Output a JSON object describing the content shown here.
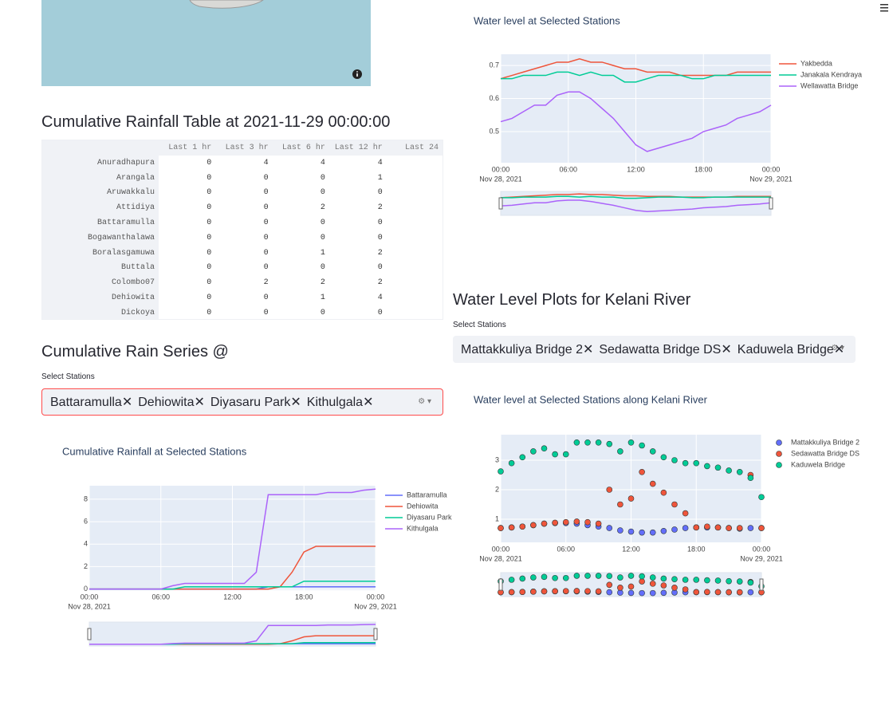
{
  "rainfall_table": {
    "title": "Cumulative Rainfall Table at 2021-11-29 00:00:00",
    "columns": [
      "Last 1 hr",
      "Last 3 hr",
      "Last 6 hr",
      "Last 12 hr",
      "Last 24"
    ],
    "rows": [
      [
        "Anuradhapura",
        0,
        4,
        4,
        4
      ],
      [
        "Arangala",
        0,
        0,
        0,
        1
      ],
      [
        "Aruwakkalu",
        0,
        0,
        0,
        0
      ],
      [
        "Attidiya",
        0,
        0,
        2,
        2
      ],
      [
        "Battaramulla",
        0,
        0,
        0,
        0
      ],
      [
        "Bogawanthalawa",
        0,
        0,
        0,
        0
      ],
      [
        "Boralasgamuwa",
        0,
        0,
        1,
        2
      ],
      [
        "Buttala",
        0,
        0,
        0,
        0
      ],
      [
        "Colombo07",
        0,
        2,
        2,
        2
      ],
      [
        "Dehiowita",
        0,
        0,
        1,
        4
      ],
      [
        "Dickoya",
        0,
        0,
        0,
        0
      ]
    ]
  },
  "rain_series": {
    "title": "Cumulative Rain Series @",
    "select_label": "Select Stations",
    "tags": [
      "Battaramulla",
      "Dehiowita",
      "Diyasaru Park",
      "Kithulgala"
    ]
  },
  "kelani": {
    "title": "Water Level Plots for Kelani River",
    "select_label": "Select Stations",
    "tags": [
      "Mattakkuliya Bridge 2",
      "Sedawatta Bridge DS",
      "Kaduwela Bridge"
    ]
  },
  "chart_data": [
    {
      "type": "line",
      "title": "Water level at Selected Stations",
      "x": [
        "2021-11-28 00:00",
        "2021-11-28 01:00",
        "2021-11-28 02:00",
        "2021-11-28 03:00",
        "2021-11-28 04:00",
        "2021-11-28 05:00",
        "2021-11-28 06:00",
        "2021-11-28 07:00",
        "2021-11-28 08:00",
        "2021-11-28 09:00",
        "2021-11-28 10:00",
        "2021-11-28 11:00",
        "2021-11-28 12:00",
        "2021-11-28 13:00",
        "2021-11-28 14:00",
        "2021-11-28 15:00",
        "2021-11-28 16:00",
        "2021-11-28 17:00",
        "2021-11-28 18:00",
        "2021-11-28 19:00",
        "2021-11-28 20:00",
        "2021-11-28 21:00",
        "2021-11-28 22:00",
        "2021-11-28 23:00",
        "2021-11-29 00:00"
      ],
      "series": [
        {
          "name": "Yakbedda",
          "color": "#ef553b",
          "values": [
            0.66,
            0.67,
            0.68,
            0.69,
            0.7,
            0.71,
            0.71,
            0.72,
            0.71,
            0.71,
            0.7,
            0.69,
            0.69,
            0.68,
            0.68,
            0.68,
            0.67,
            0.67,
            0.67,
            0.67,
            0.67,
            0.68,
            0.68,
            0.68,
            0.68
          ]
        },
        {
          "name": "Janakala Kendraya",
          "color": "#00cc96",
          "values": [
            0.66,
            0.66,
            0.67,
            0.67,
            0.67,
            0.68,
            0.68,
            0.67,
            0.68,
            0.67,
            0.67,
            0.65,
            0.65,
            0.66,
            0.67,
            0.67,
            0.67,
            0.66,
            0.66,
            0.67,
            0.67,
            0.67,
            0.67,
            0.67,
            0.67
          ]
        },
        {
          "name": "Wellawatta Bridge",
          "color": "#ab63fa",
          "values": [
            0.53,
            0.54,
            0.56,
            0.58,
            0.58,
            0.61,
            0.62,
            0.62,
            0.6,
            0.57,
            0.54,
            0.5,
            0.46,
            0.44,
            0.45,
            0.46,
            0.47,
            0.48,
            0.5,
            0.51,
            0.52,
            0.54,
            0.55,
            0.56,
            0.58
          ]
        }
      ],
      "xlim": [
        "2021-11-28 00:00",
        "2021-11-29 00:00"
      ],
      "xticks": [
        {
          "value": "2021-11-28 00:00",
          "label": "00:00",
          "date": "Nov 28, 2021"
        },
        {
          "value": "2021-11-28 06:00",
          "label": "06:00"
        },
        {
          "value": "2021-11-28 12:00",
          "label": "12:00"
        },
        {
          "value": "2021-11-28 18:00",
          "label": "18:00"
        },
        {
          "value": "2021-11-29 00:00",
          "label": "00:00",
          "date": "Nov 29, 2021"
        }
      ],
      "ylim": [
        0.406,
        0.734
      ],
      "yticks": [
        0.5,
        0.6,
        0.7
      ],
      "grid": true,
      "rangeslider": true
    },
    {
      "type": "line",
      "title": "Cumulative Rainfall at Selected Stations",
      "x": [
        "2021-11-28 00:00",
        "2021-11-28 01:00",
        "2021-11-28 02:00",
        "2021-11-28 03:00",
        "2021-11-28 04:00",
        "2021-11-28 05:00",
        "2021-11-28 06:00",
        "2021-11-28 07:00",
        "2021-11-28 08:00",
        "2021-11-28 09:00",
        "2021-11-28 10:00",
        "2021-11-28 11:00",
        "2021-11-28 12:00",
        "2021-11-28 13:00",
        "2021-11-28 14:00",
        "2021-11-28 15:00",
        "2021-11-28 16:00",
        "2021-11-28 17:00",
        "2021-11-28 18:00",
        "2021-11-28 19:00",
        "2021-11-28 20:00",
        "2021-11-28 21:00",
        "2021-11-28 22:00",
        "2021-11-28 23:00",
        "2021-11-29 00:00"
      ],
      "series": [
        {
          "name": "Battaramulla",
          "color": "#636efa",
          "values": [
            0,
            0,
            0,
            0,
            0,
            0,
            0,
            0,
            0,
            0,
            0,
            0,
            0,
            0,
            0,
            0.2,
            0.2,
            0.2,
            0.2,
            0.2,
            0.2,
            0.2,
            0.2,
            0.2,
            0.2
          ]
        },
        {
          "name": "Dehiowita",
          "color": "#ef553b",
          "values": [
            0,
            0,
            0,
            0,
            0,
            0,
            0,
            0,
            0,
            0,
            0,
            0,
            0,
            0,
            0,
            0,
            0.2,
            1.5,
            3.3,
            3.8,
            3.8,
            3.8,
            3.8,
            3.8,
            3.8
          ]
        },
        {
          "name": "Diyasaru Park",
          "color": "#00cc96",
          "values": [
            0,
            0,
            0,
            0,
            0,
            0,
            0,
            0,
            0.2,
            0.2,
            0.2,
            0.2,
            0.2,
            0.2,
            0.2,
            0.2,
            0.2,
            0.2,
            0.7,
            0.7,
            0.7,
            0.7,
            0.7,
            0.7,
            0.7
          ]
        },
        {
          "name": "Kithulgala",
          "color": "#ab63fa",
          "values": [
            0,
            0,
            0,
            0,
            0,
            0,
            0,
            0.3,
            0.5,
            0.5,
            0.5,
            0.5,
            0.5,
            0.5,
            1.5,
            8.4,
            8.4,
            8.4,
            8.4,
            8.4,
            8.6,
            8.6,
            8.6,
            8.8,
            8.9
          ]
        }
      ],
      "xlim": [
        "2021-11-28 00:00",
        "2021-11-29 00:00"
      ],
      "xticks": [
        {
          "value": "2021-11-28 00:00",
          "label": "00:00",
          "date": "Nov 28, 2021"
        },
        {
          "value": "2021-11-28 06:00",
          "label": "06:00"
        },
        {
          "value": "2021-11-28 12:00",
          "label": "12:00"
        },
        {
          "value": "2021-11-28 18:00",
          "label": "18:00"
        },
        {
          "value": "2021-11-29 00:00",
          "label": "00:00",
          "date": "Nov 29, 2021"
        }
      ],
      "ylim": [
        -0.1,
        9.2
      ],
      "yticks": [
        0,
        2,
        4,
        6,
        8
      ],
      "grid": true,
      "rangeslider": true
    },
    {
      "type": "scatter",
      "title": "Water level at Selected Stations along Kelani River",
      "x": [
        "2021-11-28 00:00",
        "2021-11-28 01:00",
        "2021-11-28 02:00",
        "2021-11-28 03:00",
        "2021-11-28 04:00",
        "2021-11-28 05:00",
        "2021-11-28 06:00",
        "2021-11-28 07:00",
        "2021-11-28 08:00",
        "2021-11-28 09:00",
        "2021-11-28 10:00",
        "2021-11-28 11:00",
        "2021-11-28 12:00",
        "2021-11-28 13:00",
        "2021-11-28 14:00",
        "2021-11-28 15:00",
        "2021-11-28 16:00",
        "2021-11-28 17:00",
        "2021-11-28 18:00",
        "2021-11-28 19:00",
        "2021-11-28 20:00",
        "2021-11-28 21:00",
        "2021-11-28 22:00",
        "2021-11-28 23:00",
        "2021-11-29 00:00"
      ],
      "series": [
        {
          "name": "Mattakkuliya Bridge 2",
          "color": "#636efa",
          "values": [
            0.7,
            0.72,
            0.75,
            0.8,
            0.85,
            0.87,
            0.87,
            0.85,
            0.8,
            0.75,
            0.7,
            0.62,
            0.58,
            0.55,
            0.55,
            0.6,
            0.65,
            0.7,
            0.72,
            0.72,
            0.72,
            0.7,
            0.68,
            0.7,
            0.7
          ]
        },
        {
          "name": "Sedawatta Bridge DS",
          "color": "#ef553b",
          "values": [
            0.7,
            0.72,
            0.75,
            0.8,
            0.85,
            0.88,
            0.9,
            0.92,
            0.9,
            0.85,
            2.0,
            1.5,
            1.7,
            2.6,
            2.2,
            1.9,
            1.5,
            1.2,
            0.72,
            0.75,
            0.72,
            0.7,
            0.7,
            2.5,
            0.7
          ]
        },
        {
          "name": "Kaduwela Bridge",
          "color": "#00cc96",
          "values": [
            2.62,
            2.9,
            3.1,
            3.3,
            3.4,
            3.2,
            3.2,
            3.6,
            3.6,
            3.6,
            3.55,
            3.3,
            3.6,
            3.5,
            3.3,
            3.1,
            3.0,
            2.9,
            2.9,
            2.8,
            2.75,
            2.65,
            2.6,
            2.4,
            1.75
          ]
        }
      ],
      "xlim": [
        "2021-11-28 00:00",
        "2021-11-29 00:00"
      ],
      "xticks": [
        {
          "value": "2021-11-28 00:00",
          "label": "00:00",
          "date": "Nov 28, 2021"
        },
        {
          "value": "2021-11-28 06:00",
          "label": "06:00"
        },
        {
          "value": "2021-11-28 12:00",
          "label": "12:00"
        },
        {
          "value": "2021-11-28 18:00",
          "label": "18:00"
        },
        {
          "value": "2021-11-29 00:00",
          "label": "00:00",
          "date": "Nov 29, 2021"
        }
      ],
      "ylim": [
        0.216,
        3.865
      ],
      "yticks": [
        1,
        2,
        3
      ],
      "grid": true,
      "rangeslider": true
    }
  ]
}
